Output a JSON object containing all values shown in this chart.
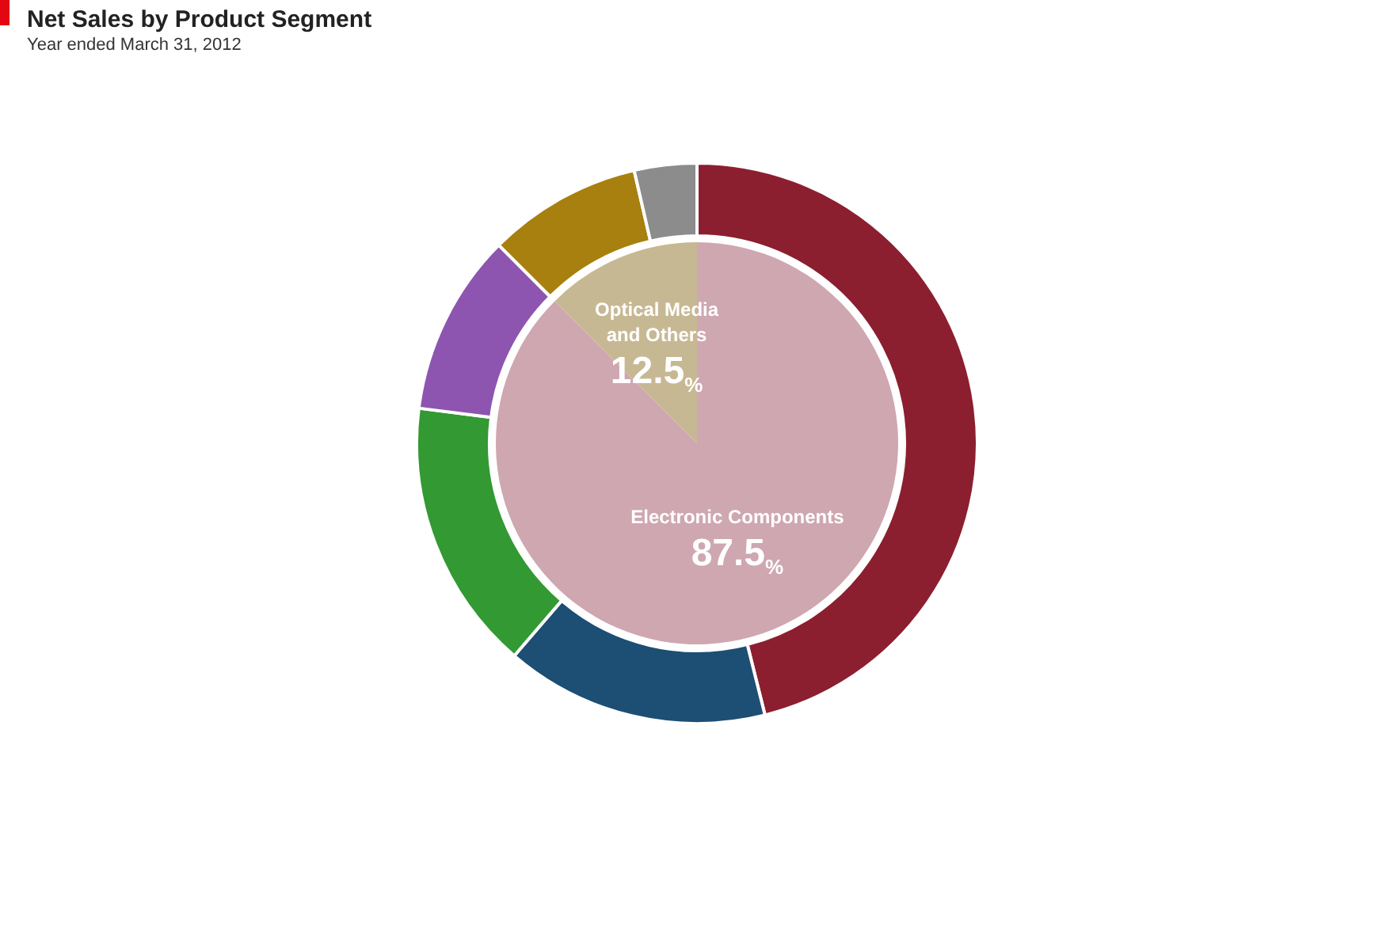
{
  "chart_data": [
    {
      "type": "pie",
      "legend": false,
      "categories": [
        "Electronic Components",
        "Optical Media and Others"
      ],
      "values": [
        87.5,
        12.5
      ],
      "colors": [
        "#cea7b1",
        "#c7b894"
      ],
      "value_labels": [
        "87.5%",
        "12.5%"
      ]
    },
    {
      "type": "donut",
      "title": "Net Sales by Product Segment",
      "subtitle": "Year ended March 31, 2012",
      "legend": false,
      "categories": [
        null,
        null,
        null,
        null,
        null,
        null
      ],
      "values": [
        46.1,
        15.2,
        15.7,
        10.5,
        8.9,
        3.6
      ],
      "colors": [
        "#8b1f2f",
        "#1d4e74",
        "#339933",
        "#8e55b0",
        "#a7800f",
        "#8c8c8c"
      ]
    }
  ]
}
